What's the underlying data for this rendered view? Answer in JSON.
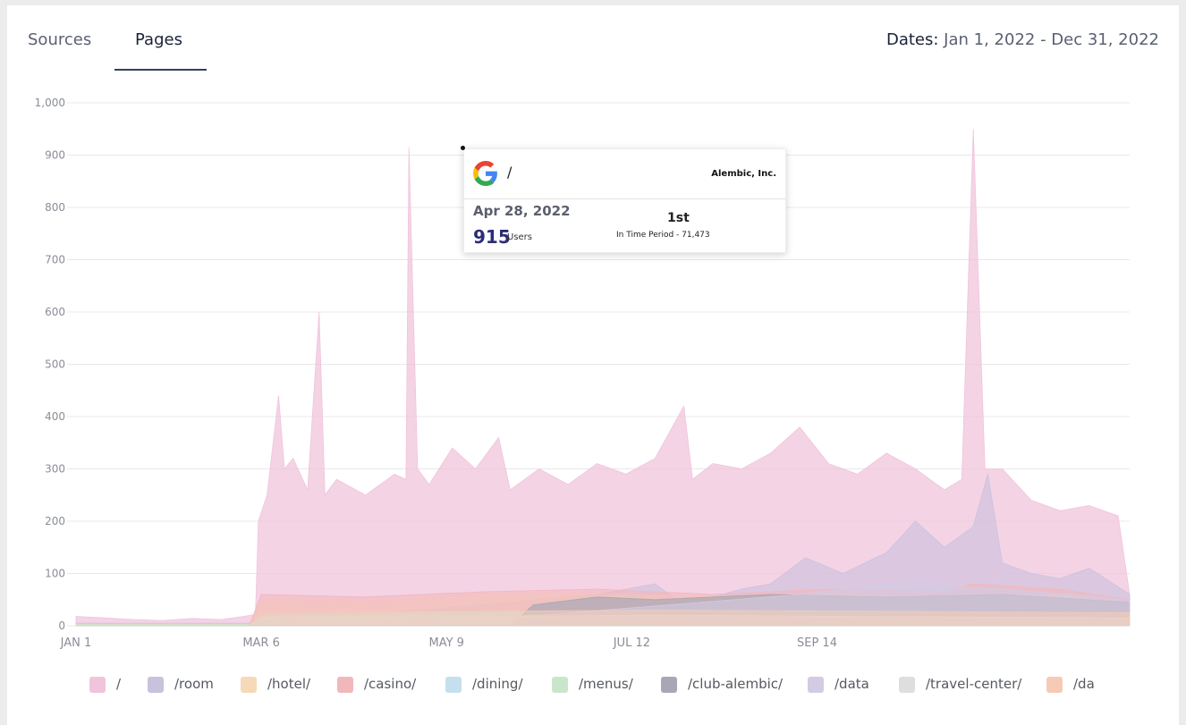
{
  "tabs": [
    {
      "label": "Sources",
      "active": false
    },
    {
      "label": "Pages",
      "active": true
    }
  ],
  "dates": {
    "label": "Dates:",
    "value": "Jan 1, 2022 - Dec 31, 2022"
  },
  "tooltip": {
    "page": "/",
    "company": "Alembic, Inc.",
    "date": "Apr 28, 2022",
    "value": "915",
    "unit": "Users",
    "rank": "1st",
    "period_text": "In Time Period - 71,473",
    "icon": "google-g-icon"
  },
  "chart_data": {
    "type": "area",
    "title": "",
    "xlabel": "",
    "ylabel": "",
    "ylim": [
      0,
      1000
    ],
    "yticks": [
      "0",
      "100",
      "200",
      "300",
      "400",
      "500",
      "600",
      "700",
      "800",
      "900",
      "1,000"
    ],
    "xticks": [
      "JAN 1",
      "MAR 6",
      "MAY 9",
      "JUL 12",
      "SEP 14"
    ],
    "grid": true,
    "legend_position": "bottom",
    "series": [
      {
        "name": "/",
        "color": "#f0c4dc",
        "opacity": 0.75,
        "points": [
          [
            0,
            18
          ],
          [
            10,
            15
          ],
          [
            20,
            12
          ],
          [
            30,
            10
          ],
          [
            40,
            14
          ],
          [
            50,
            12
          ],
          [
            58,
            18
          ],
          [
            62,
            22
          ],
          [
            63,
            200
          ],
          [
            66,
            250
          ],
          [
            70,
            440
          ],
          [
            72,
            300
          ],
          [
            75,
            320
          ],
          [
            80,
            260
          ],
          [
            84,
            600
          ],
          [
            86,
            250
          ],
          [
            90,
            280
          ],
          [
            100,
            250
          ],
          [
            110,
            290
          ],
          [
            114,
            280
          ],
          [
            115,
            915
          ],
          [
            118,
            300
          ],
          [
            122,
            270
          ],
          [
            130,
            340
          ],
          [
            138,
            300
          ],
          [
            146,
            360
          ],
          [
            150,
            260
          ],
          [
            160,
            300
          ],
          [
            170,
            270
          ],
          [
            180,
            310
          ],
          [
            190,
            290
          ],
          [
            200,
            320
          ],
          [
            210,
            420
          ],
          [
            213,
            280
          ],
          [
            220,
            310
          ],
          [
            230,
            300
          ],
          [
            240,
            330
          ],
          [
            250,
            380
          ],
          [
            260,
            310
          ],
          [
            270,
            290
          ],
          [
            280,
            330
          ],
          [
            290,
            300
          ],
          [
            300,
            260
          ],
          [
            306,
            280
          ],
          [
            310,
            950
          ],
          [
            314,
            300
          ],
          [
            320,
            300
          ],
          [
            330,
            240
          ],
          [
            340,
            220
          ],
          [
            350,
            230
          ],
          [
            360,
            210
          ],
          [
            364,
            60
          ]
        ]
      },
      {
        "name": "/room",
        "color": "#c9c2dc",
        "opacity": 0.6,
        "points": [
          [
            0,
            5
          ],
          [
            60,
            5
          ],
          [
            64,
            20
          ],
          [
            100,
            25
          ],
          [
            120,
            30
          ],
          [
            140,
            40
          ],
          [
            180,
            60
          ],
          [
            200,
            80
          ],
          [
            210,
            40
          ],
          [
            230,
            70
          ],
          [
            240,
            80
          ],
          [
            252,
            130
          ],
          [
            265,
            100
          ],
          [
            280,
            140
          ],
          [
            290,
            200
          ],
          [
            300,
            150
          ],
          [
            310,
            190
          ],
          [
            315,
            290
          ],
          [
            320,
            120
          ],
          [
            330,
            100
          ],
          [
            340,
            90
          ],
          [
            350,
            110
          ],
          [
            364,
            60
          ]
        ]
      },
      {
        "name": "/hotel/",
        "color": "#f6d9b8",
        "opacity": 0.6,
        "points": [
          [
            0,
            3
          ],
          [
            60,
            3
          ],
          [
            64,
            50
          ],
          [
            100,
            45
          ],
          [
            140,
            60
          ],
          [
            180,
            60
          ],
          [
            220,
            55
          ],
          [
            260,
            60
          ],
          [
            300,
            55
          ],
          [
            340,
            60
          ],
          [
            364,
            40
          ]
        ]
      },
      {
        "name": "/casino/",
        "color": "#f2b7bb",
        "opacity": 0.6,
        "points": [
          [
            0,
            2
          ],
          [
            60,
            2
          ],
          [
            64,
            60
          ],
          [
            100,
            55
          ],
          [
            140,
            65
          ],
          [
            180,
            70
          ],
          [
            220,
            60
          ],
          [
            260,
            70
          ],
          [
            300,
            65
          ],
          [
            310,
            80
          ],
          [
            340,
            70
          ],
          [
            364,
            50
          ]
        ]
      },
      {
        "name": "/dining/",
        "color": "#c5dfef",
        "opacity": 0.6,
        "points": [
          [
            0,
            2
          ],
          [
            60,
            2
          ],
          [
            64,
            20
          ],
          [
            120,
            25
          ],
          [
            200,
            30
          ],
          [
            280,
            30
          ],
          [
            364,
            20
          ]
        ]
      },
      {
        "name": "/menus/",
        "color": "#c9e6cb",
        "opacity": 0.6,
        "points": [
          [
            0,
            2
          ],
          [
            60,
            2
          ],
          [
            64,
            15
          ],
          [
            120,
            20
          ],
          [
            200,
            25
          ],
          [
            280,
            25
          ],
          [
            364,
            18
          ]
        ]
      },
      {
        "name": "/club-alembic/",
        "color": "#a9a7b5",
        "opacity": 0.7,
        "points": [
          [
            0,
            0
          ],
          [
            150,
            0
          ],
          [
            158,
            40
          ],
          [
            180,
            55
          ],
          [
            200,
            50
          ],
          [
            240,
            60
          ],
          [
            280,
            55
          ],
          [
            320,
            60
          ],
          [
            364,
            45
          ]
        ]
      },
      {
        "name": "/data",
        "color": "#d2cbe2",
        "opacity": 0.6,
        "points": [
          [
            0,
            0
          ],
          [
            60,
            0
          ],
          [
            64,
            10
          ],
          [
            160,
            20
          ],
          [
            250,
            60
          ],
          [
            280,
            80
          ],
          [
            320,
            70
          ],
          [
            364,
            50
          ]
        ]
      },
      {
        "name": "/travel-center/",
        "color": "#dedede",
        "opacity": 0.6,
        "points": [
          [
            0,
            0
          ],
          [
            60,
            0
          ],
          [
            64,
            15
          ],
          [
            200,
            20
          ],
          [
            364,
            15
          ]
        ]
      },
      {
        "name": "/da",
        "color": "#f5cbb6",
        "opacity": 0.6,
        "points": [
          [
            0,
            0
          ],
          [
            60,
            0
          ],
          [
            64,
            25
          ],
          [
            200,
            30
          ],
          [
            364,
            25
          ]
        ]
      }
    ]
  }
}
